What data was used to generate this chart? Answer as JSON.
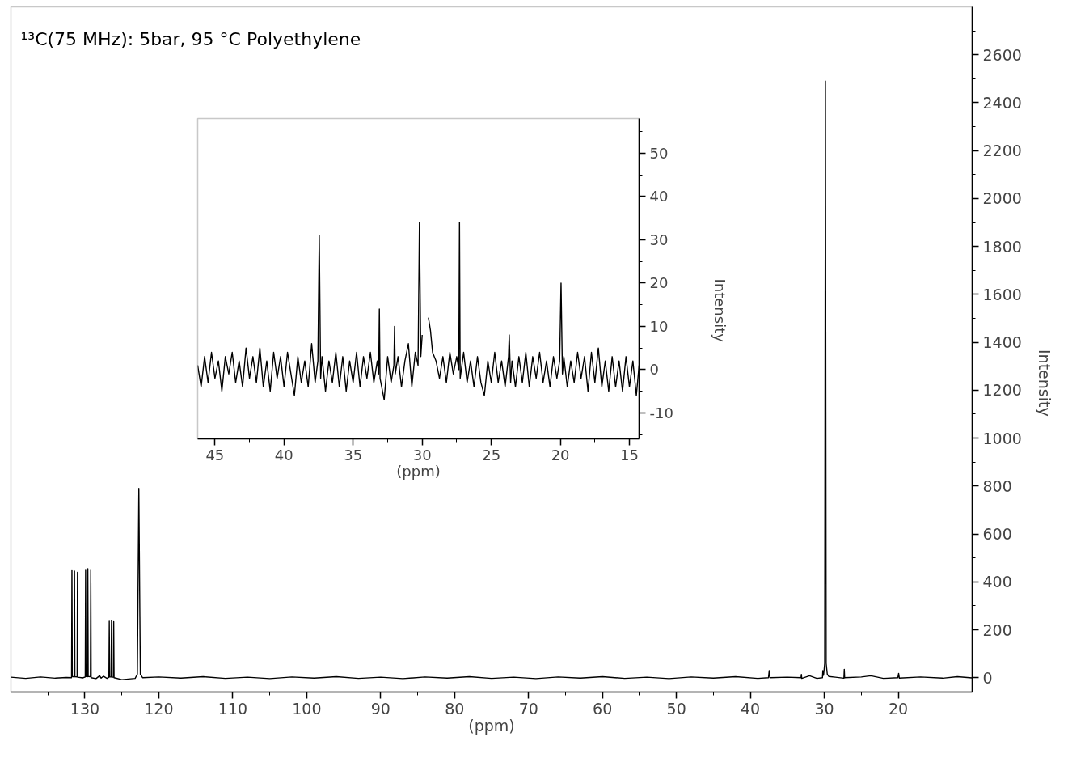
{
  "chart_data": [
    {
      "type": "line",
      "title": "¹³C(75 MHz): 5bar, 95 °C Polyethylene",
      "xlabel": "(ppm)",
      "ylabel": "Intensity",
      "xlim": [
        140,
        10
      ],
      "ylim": [
        -60,
        2800
      ],
      "grid": false,
      "marker": "none",
      "line_style": "solid",
      "xticks": [
        {
          "value": 135,
          "label": null
        },
        130,
        {
          "value": 125,
          "label": null
        },
        120,
        {
          "value": 115,
          "label": null
        },
        110,
        {
          "value": 105,
          "label": null
        },
        100,
        {
          "value": 95,
          "label": null
        },
        90,
        {
          "value": 85,
          "label": null
        },
        80,
        {
          "value": 75,
          "label": null
        },
        70,
        {
          "value": 65,
          "label": null
        },
        60,
        {
          "value": 55,
          "label": null
        },
        50,
        {
          "value": 45,
          "label": null
        },
        40,
        {
          "value": 35,
          "label": null
        },
        30,
        {
          "value": 25,
          "label": null
        },
        20,
        {
          "value": 15,
          "label": null
        }
      ],
      "yticks": [
        0,
        {
          "value": 100,
          "label": null
        },
        200,
        {
          "value": 300,
          "label": null
        },
        400,
        {
          "value": 500,
          "label": null
        },
        600,
        {
          "value": 700,
          "label": null
        },
        800,
        {
          "value": 900,
          "label": null
        },
        1000,
        {
          "value": 1100,
          "label": null
        },
        1200,
        {
          "value": 1300,
          "label": null
        },
        1400,
        {
          "value": 1500,
          "label": null
        },
        1600,
        {
          "value": 1700,
          "label": null
        },
        1800,
        {
          "value": 1900,
          "label": null
        },
        2000,
        {
          "value": 2100,
          "label": null
        },
        2200,
        {
          "value": 2300,
          "label": null
        },
        2400,
        {
          "value": 2500,
          "label": null
        },
        2600,
        {
          "value": 2700,
          "label": null
        }
      ],
      "series": [
        {
          "color": "#000000",
          "x": [
            140,
            138,
            136,
            134,
            132.5,
            131.8,
            131.75,
            131.7,
            131.45,
            131.4,
            131.35,
            131.05,
            131.0,
            130.95,
            130.3,
            129.95,
            129.9,
            129.85,
            129.65,
            129.6,
            129.55,
            129.25,
            129.2,
            129.15,
            128.5,
            128.0,
            127.8,
            127.5,
            127.0,
            126.75,
            126.7,
            126.65,
            126.45,
            126.4,
            126.35,
            126.15,
            126.1,
            126.05,
            125,
            123.2,
            122.9,
            122.7,
            122.5,
            122.2,
            120,
            117,
            114,
            111,
            108,
            105,
            102,
            99,
            96,
            93,
            90,
            87,
            84,
            81,
            78,
            75,
            72,
            69,
            66,
            63,
            60,
            57,
            54,
            51,
            48,
            45,
            42,
            39,
            37.55,
            37.45,
            37.35,
            35,
            33.15,
            33.1,
            33.05,
            32,
            31,
            30.25,
            30.2,
            30.1,
            29.95,
            29.85,
            29.75,
            29.6,
            29.4,
            28.5,
            27.35,
            27.3,
            27.25,
            25,
            23.7,
            22,
            20.05,
            19.95,
            19.85,
            17,
            14,
            12,
            10
          ],
          "values": [
            2,
            -3,
            3,
            -2,
            1,
            0,
            450,
            5,
            3,
            445,
            4,
            3,
            440,
            2,
            -1,
            3,
            452,
            5,
            4,
            455,
            5,
            4,
            452,
            0,
            -4,
            8,
            -2,
            6,
            -3,
            2,
            236,
            3,
            3,
            238,
            2,
            2,
            234,
            0,
            -8,
            -3,
            15,
            790,
            15,
            0,
            3,
            -2,
            4,
            -3,
            2,
            -4,
            3,
            -2,
            4,
            -3,
            2,
            -4,
            3,
            -2,
            4,
            -3,
            2,
            -4,
            3,
            -2,
            4,
            -3,
            2,
            -4,
            3,
            -2,
            4,
            -3,
            0,
            30,
            0,
            2,
            0,
            14,
            -3,
            8,
            -3,
            0,
            30,
            10,
            60,
            2490,
            60,
            15,
            5,
            2,
            -2,
            35,
            0,
            3,
            8,
            -3,
            0,
            18,
            -2,
            3,
            -2,
            4,
            -1
          ]
        }
      ]
    },
    {
      "type": "line",
      "xlabel": "(ppm)",
      "ylabel": "Intensity",
      "xlim": [
        46.25,
        14.3
      ],
      "ylim": [
        -16,
        58
      ],
      "grid": false,
      "marker": "none",
      "line_style": "solid",
      "xticks": [
        45,
        {
          "value": 42.5,
          "label": null
        },
        40,
        {
          "value": 37.5,
          "label": null
        },
        35,
        {
          "value": 32.5,
          "label": null
        },
        30,
        {
          "value": 27.5,
          "label": null
        },
        25,
        {
          "value": 22.5,
          "label": null
        },
        20,
        {
          "value": 17.5,
          "label": null
        },
        15
      ],
      "yticks": [
        {
          "value": -15,
          "label": null
        },
        -10,
        {
          "value": -5,
          "label": null
        },
        0,
        {
          "value": 5,
          "label": null
        },
        10,
        {
          "value": 15,
          "label": null
        },
        20,
        {
          "value": 25,
          "label": null
        },
        30,
        {
          "value": 35,
          "label": null
        },
        40,
        {
          "value": 45,
          "label": null
        },
        50,
        {
          "value": 55,
          "label": null
        }
      ],
      "series": [
        {
          "color": "#000000",
          "x": [
            46.25,
            46.0,
            45.75,
            45.5,
            45.25,
            45.0,
            44.75,
            44.5,
            44.25,
            44.0,
            43.75,
            43.5,
            43.25,
            43.0,
            42.75,
            42.5,
            42.25,
            42.0,
            41.75,
            41.5,
            41.25,
            41.0,
            40.75,
            40.5,
            40.25,
            40.0,
            39.75,
            39.5,
            39.25,
            39.0,
            38.75,
            38.5,
            38.25,
            38.0,
            37.75,
            37.55,
            37.45,
            37.35,
            37.25,
            37.0,
            36.75,
            36.5,
            36.25,
            36.0,
            35.75,
            35.5,
            35.25,
            35.0,
            34.75,
            34.5,
            34.25,
            34.0,
            33.75,
            33.5,
            33.25,
            33.15,
            33.1,
            33.05,
            32.75,
            32.5,
            32.25,
            32.05,
            32.0,
            31.95,
            31.75,
            31.5,
            31.25,
            31.0,
            30.75,
            30.5,
            30.3,
            30.2,
            30.1,
            30.0,
            29.9,
            29.78,
            29.65,
            29.55,
            29.4,
            29.25,
            29.0,
            28.75,
            28.5,
            28.25,
            28.0,
            27.75,
            27.5,
            27.35,
            27.3,
            27.25,
            27.0,
            26.75,
            26.5,
            26.25,
            26.0,
            25.75,
            25.5,
            25.25,
            25.0,
            24.75,
            24.5,
            24.25,
            24.0,
            23.75,
            23.7,
            23.6,
            23.5,
            23.25,
            23.0,
            22.75,
            22.5,
            22.25,
            22.0,
            21.75,
            21.5,
            21.25,
            21.0,
            20.75,
            20.5,
            20.25,
            20.05,
            19.95,
            19.85,
            19.75,
            19.5,
            19.25,
            19.0,
            18.75,
            18.5,
            18.25,
            18.0,
            17.75,
            17.5,
            17.25,
            17.0,
            16.75,
            16.5,
            16.25,
            16.0,
            15.75,
            15.5,
            15.25,
            15.0,
            14.75,
            14.5,
            14.3
          ],
          "values": [
            1,
            -4,
            3,
            -3,
            4,
            -2,
            2,
            -5,
            3,
            -1,
            4,
            -3,
            2,
            -4,
            5,
            -2,
            3,
            -3,
            5,
            -4,
            2,
            -5,
            4,
            -2,
            3,
            -4,
            4,
            -1,
            -6,
            3,
            -3,
            2,
            -4,
            6,
            -3,
            2,
            31,
            -2,
            3,
            -5,
            2,
            -3,
            4,
            -4,
            3,
            -5,
            2,
            -3,
            4,
            -4,
            3,
            -2,
            4,
            -3,
            2,
            -1,
            14,
            -2,
            -7,
            3,
            -3,
            1,
            10,
            -1,
            3,
            -4,
            2,
            6,
            -4,
            4,
            1,
            34,
            3,
            8,
            null,
            null,
            null,
            12,
            9,
            4,
            2,
            -2,
            3,
            -3,
            4,
            -1,
            3,
            0,
            34,
            -2,
            4,
            -3,
            2,
            -4,
            3,
            -3,
            -6,
            2,
            -3,
            4,
            -3,
            2,
            -4,
            3,
            8,
            -3,
            2,
            -4,
            3,
            -3,
            4,
            -4,
            3,
            -2,
            4,
            -3,
            2,
            -4,
            3,
            -2,
            2,
            20,
            -1,
            3,
            -4,
            2,
            -3,
            4,
            -2,
            3,
            -5,
            4,
            -3,
            5,
            -4,
            2,
            -5,
            3,
            -4,
            2,
            -5,
            3,
            -4,
            2,
            -6,
            1
          ]
        }
      ]
    }
  ]
}
